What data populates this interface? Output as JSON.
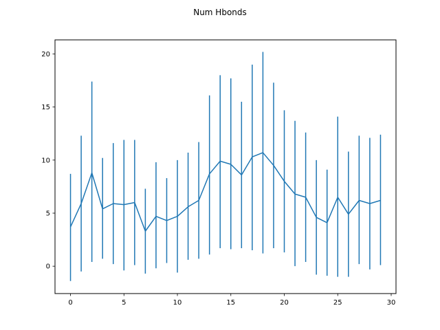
{
  "chart_data": {
    "type": "line",
    "title": "Num Hbonds",
    "xlabel": "",
    "ylabel": "",
    "xlim": [
      -1.45,
      30.45
    ],
    "ylim": [
      -2.58,
      21.33
    ],
    "xticks": [
      0,
      5,
      10,
      15,
      20,
      25,
      30
    ],
    "yticks": [
      0,
      5,
      10,
      15,
      20
    ],
    "grid": false,
    "legend": "none",
    "line_color": "#1f77b4",
    "series": [
      {
        "x": [
          0,
          1,
          2,
          3,
          4,
          5,
          6,
          7,
          8,
          9,
          10,
          11,
          12,
          13,
          14,
          15,
          16,
          17,
          18,
          19,
          20,
          21,
          22,
          23,
          24,
          25,
          26,
          27,
          28,
          29
        ],
        "values": [
          3.7,
          5.9,
          8.8,
          5.4,
          5.9,
          5.8,
          6.0,
          3.3,
          4.7,
          4.3,
          4.7,
          5.6,
          6.2,
          8.7,
          9.9,
          9.6,
          8.6,
          10.3,
          10.7,
          9.5,
          8.0,
          6.8,
          6.5,
          4.6,
          4.1,
          6.5,
          4.9,
          6.2,
          5.9,
          6.2
        ],
        "err_low": [
          -1.4,
          -0.5,
          0.4,
          0.7,
          0.2,
          -0.4,
          0.1,
          -0.7,
          -0.2,
          0.3,
          -0.6,
          0.6,
          0.7,
          1.1,
          1.7,
          1.6,
          1.7,
          1.5,
          1.2,
          1.7,
          1.3,
          0.0,
          0.4,
          -0.8,
          -0.9,
          -1.0,
          -1.0,
          0.2,
          -0.3,
          0.1
        ],
        "err_high": [
          8.7,
          12.3,
          17.4,
          10.2,
          11.6,
          11.9,
          11.9,
          7.3,
          9.8,
          8.3,
          10.0,
          10.7,
          11.7,
          16.1,
          18.0,
          17.7,
          15.5,
          19.0,
          20.2,
          17.3,
          14.7,
          13.7,
          12.6,
          10.0,
          9.1,
          14.1,
          10.8,
          12.3,
          12.1,
          12.4
        ]
      }
    ]
  }
}
